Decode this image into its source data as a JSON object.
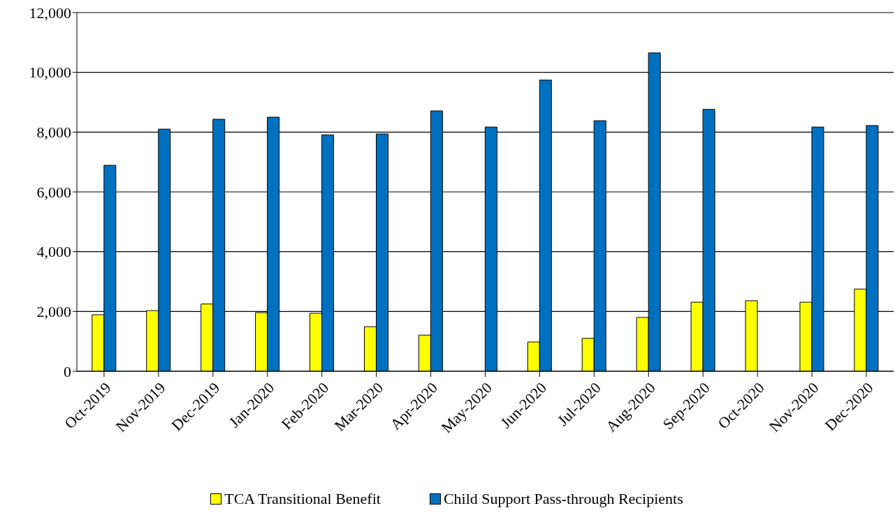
{
  "chart_data": {
    "type": "bar",
    "categories": [
      "Oct-2019",
      "Nov-2019",
      "Dec-2019",
      "Jan-2020",
      "Feb-2020",
      "Mar-2020",
      "Apr-2020",
      "May-2020",
      "Jun-2020",
      "Jul-2020",
      "Aug-2020",
      "Sep-2020",
      "Oct-2020",
      "Nov-2020",
      "Dec-2020"
    ],
    "series": [
      {
        "name": "TCA Transitional Benefit",
        "color": "#ffff00",
        "values": [
          1890,
          2030,
          2250,
          1960,
          1940,
          1490,
          1210,
          null,
          980,
          1100,
          1800,
          2310,
          2360,
          2310,
          2750
        ]
      },
      {
        "name": "Child Support Pass-through Recipients",
        "color": "#0070c0",
        "values": [
          6890,
          8100,
          8430,
          8500,
          7910,
          7940,
          8710,
          8170,
          9740,
          8380,
          10650,
          8760,
          null,
          8170,
          8220
        ]
      }
    ],
    "ylim": [
      0,
      12000
    ],
    "yticks": [
      0,
      {
        "value": 2000,
        "label": "2,000"
      },
      {
        "value": 4000,
        "label": "4,000"
      },
      {
        "value": 6000,
        "label": "6,000"
      },
      {
        "value": 8000,
        "label": "8,000"
      },
      {
        "value": 10000,
        "label": "10,000"
      },
      {
        "value": 12000,
        "label": "12,000"
      }
    ],
    "grid": "y",
    "legend": "bottom"
  }
}
